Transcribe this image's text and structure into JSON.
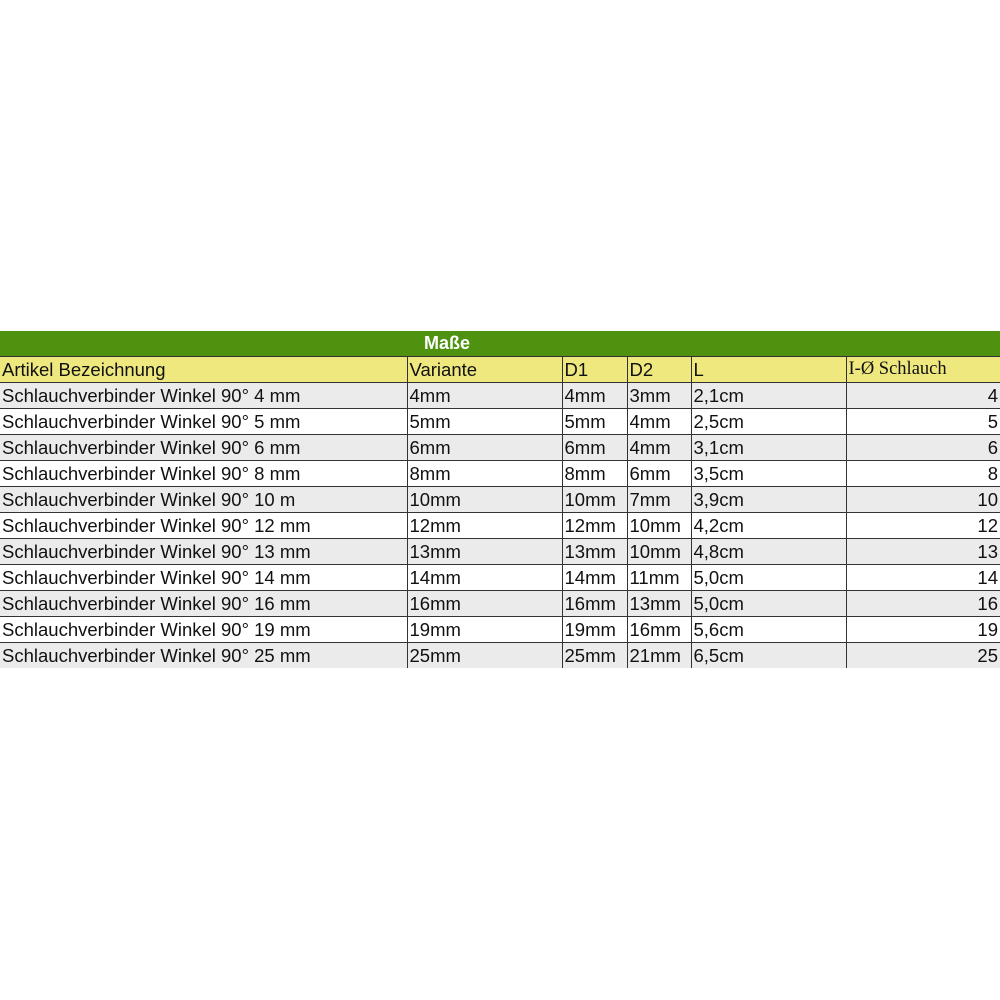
{
  "title": "Maße",
  "colors": {
    "title_bg": "#4e920f",
    "header_bg": "#eee87f",
    "stripe": "#ebebeb"
  },
  "columns": [
    "Artikel Bezeichnung",
    "Variante",
    "D1",
    "D2",
    "L",
    "I-Ø Schlauch"
  ],
  "rows": [
    [
      "Schlauchverbinder Winkel 90° 4 mm",
      "4mm",
      "4mm",
      "3mm",
      "2,1cm",
      "4"
    ],
    [
      "Schlauchverbinder Winkel 90° 5 mm",
      "5mm",
      "5mm",
      "4mm",
      "2,5cm",
      "5"
    ],
    [
      "Schlauchverbinder Winkel 90° 6 mm",
      "6mm",
      "6mm",
      "4mm",
      "3,1cm",
      "6"
    ],
    [
      "Schlauchverbinder Winkel 90° 8 mm",
      "8mm",
      "8mm",
      "6mm",
      "3,5cm",
      "8"
    ],
    [
      "Schlauchverbinder Winkel 90° 10 m",
      "10mm",
      "10mm",
      "7mm",
      "3,9cm",
      "10"
    ],
    [
      "Schlauchverbinder Winkel 90° 12 mm",
      "12mm",
      "12mm",
      "10mm",
      "4,2cm",
      "12"
    ],
    [
      "Schlauchverbinder Winkel 90° 13 mm",
      "13mm",
      "13mm",
      "10mm",
      "4,8cm",
      "13"
    ],
    [
      "Schlauchverbinder Winkel 90° 14 mm",
      "14mm",
      "14mm",
      "11mm",
      "5,0cm",
      "14"
    ],
    [
      "Schlauchverbinder Winkel 90° 16 mm",
      "16mm",
      "16mm",
      "13mm",
      "5,0cm",
      "16"
    ],
    [
      "Schlauchverbinder Winkel 90° 19 mm",
      "19mm",
      "19mm",
      "16mm",
      "5,6cm",
      "19"
    ],
    [
      "Schlauchverbinder Winkel 90° 25 mm",
      "25mm",
      "25mm",
      "21mm",
      "6,5cm",
      "25"
    ]
  ]
}
